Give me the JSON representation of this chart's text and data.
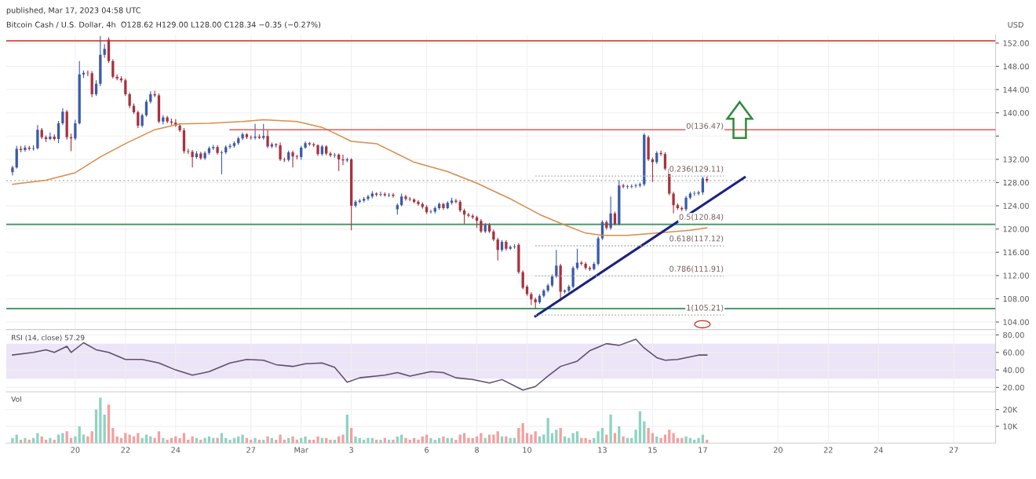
{
  "chart_data": [
    {
      "type": "candlestick",
      "subtitle": "published, Mar 17, 2023 04:58 UTC",
      "title": "Bitcoin Cash / U.S. Dollar, 4h  O128.62 H129.00 L128.00 C128.34 −0.35 (−0.27%)",
      "ylabel": "USD",
      "x": [
        "2023-02-17T12:00",
        "2023-02-17T16:00",
        "2023-02-17T20:00",
        "2023-02-18T00:00",
        "2023-02-18T04:00",
        "2023-02-18T08:00",
        "2023-02-18T12:00",
        "2023-02-18T16:00",
        "2023-02-18T20:00",
        "2023-02-19T00:00",
        "2023-02-19T04:00",
        "2023-02-19T08:00",
        "2023-02-19T12:00",
        "2023-02-19T16:00",
        "2023-02-19T20:00",
        "2023-02-20T00:00",
        "2023-02-20T04:00",
        "2023-02-20T08:00",
        "2023-02-20T12:00",
        "2023-02-20T16:00",
        "2023-02-20T20:00",
        "2023-02-21T00:00",
        "2023-02-21T04:00",
        "2023-02-21T08:00",
        "2023-02-21T12:00",
        "2023-02-21T16:00",
        "2023-02-21T20:00",
        "2023-02-22T00:00",
        "2023-02-22T04:00",
        "2023-02-22T08:00",
        "2023-02-22T12:00",
        "2023-02-22T16:00",
        "2023-02-22T20:00",
        "2023-02-23T00:00",
        "2023-02-23T04:00",
        "2023-02-23T08:00",
        "2023-02-23T12:00",
        "2023-02-23T16:00",
        "2023-02-23T20:00",
        "2023-02-24T00:00",
        "2023-02-24T04:00",
        "2023-02-24T08:00",
        "2023-02-24T12:00",
        "2023-02-24T16:00",
        "2023-02-24T20:00",
        "2023-02-25T00:00",
        "2023-02-25T04:00",
        "2023-02-25T08:00",
        "2023-02-25T12:00",
        "2023-02-25T16:00",
        "2023-02-25T20:00",
        "2023-02-26T00:00",
        "2023-02-26T04:00",
        "2023-02-26T08:00",
        "2023-02-26T12:00",
        "2023-02-26T16:00",
        "2023-02-26T20:00",
        "2023-02-27T00:00",
        "2023-02-27T04:00",
        "2023-02-27T08:00",
        "2023-02-27T12:00",
        "2023-02-27T16:00",
        "2023-02-27T20:00",
        "2023-02-28T00:00",
        "2023-02-28T04:00",
        "2023-02-28T08:00",
        "2023-02-28T12:00",
        "2023-02-28T16:00",
        "2023-02-28T20:00",
        "2023-03-01T00:00",
        "2023-03-01T04:00",
        "2023-03-01T08:00",
        "2023-03-01T12:00",
        "2023-03-01T16:00",
        "2023-03-01T20:00",
        "2023-03-02T00:00",
        "2023-03-02T04:00",
        "2023-03-02T08:00",
        "2023-03-02T12:00",
        "2023-03-02T16:00",
        "2023-03-02T20:00",
        "2023-03-03T00:00",
        "2023-03-03T04:00",
        "2023-03-03T08:00",
        "2023-03-03T12:00",
        "2023-03-03T16:00",
        "2023-03-03T20:00",
        "2023-03-04T00:00",
        "2023-03-04T04:00",
        "2023-03-04T08:00",
        "2023-03-04T12:00",
        "2023-03-04T16:00",
        "2023-03-04T20:00",
        "2023-03-05T00:00",
        "2023-03-05T04:00",
        "2023-03-05T08:00",
        "2023-03-05T12:00",
        "2023-03-05T16:00",
        "2023-03-05T20:00",
        "2023-03-06T00:00",
        "2023-03-06T04:00",
        "2023-03-06T08:00",
        "2023-03-06T12:00",
        "2023-03-06T16:00",
        "2023-03-06T20:00",
        "2023-03-07T00:00",
        "2023-03-07T04:00",
        "2023-03-07T08:00",
        "2023-03-07T12:00",
        "2023-03-07T16:00",
        "2023-03-07T20:00",
        "2023-03-08T00:00",
        "2023-03-08T04:00",
        "2023-03-08T08:00",
        "2023-03-08T12:00",
        "2023-03-08T16:00",
        "2023-03-08T20:00",
        "2023-03-09T00:00",
        "2023-03-09T04:00",
        "2023-03-09T08:00",
        "2023-03-09T12:00",
        "2023-03-09T16:00",
        "2023-03-09T20:00",
        "2023-03-10T00:00",
        "2023-03-10T04:00",
        "2023-03-10T08:00",
        "2023-03-10T12:00",
        "2023-03-10T16:00",
        "2023-03-10T20:00",
        "2023-03-11T00:00",
        "2023-03-11T04:00",
        "2023-03-11T08:00",
        "2023-03-11T12:00",
        "2023-03-11T16:00",
        "2023-03-11T20:00",
        "2023-03-12T00:00",
        "2023-03-12T04:00",
        "2023-03-12T08:00",
        "2023-03-12T12:00",
        "2023-03-12T16:00",
        "2023-03-12T20:00",
        "2023-03-13T00:00",
        "2023-03-13T04:00",
        "2023-03-13T08:00",
        "2023-03-13T12:00",
        "2023-03-13T16:00",
        "2023-03-13T20:00",
        "2023-03-14T00:00",
        "2023-03-14T04:00",
        "2023-03-14T08:00",
        "2023-03-14T12:00",
        "2023-03-14T16:00",
        "2023-03-14T20:00",
        "2023-03-15T00:00",
        "2023-03-15T04:00",
        "2023-03-15T08:00",
        "2023-03-15T12:00",
        "2023-03-15T16:00",
        "2023-03-15T20:00",
        "2023-03-16T00:00",
        "2023-03-16T04:00",
        "2023-03-16T08:00",
        "2023-03-16T12:00",
        "2023-03-16T16:00",
        "2023-03-16T20:00",
        "2023-03-17T00:00",
        "2023-03-17T04:00"
      ],
      "ohlc": [
        [
          129.8,
          130.9,
          129.2,
          130.6
        ],
        [
          130.6,
          134.3,
          130.4,
          133.8
        ],
        [
          133.8,
          134.3,
          133.2,
          133.6
        ],
        [
          133.6,
          134.4,
          133.3,
          134.0
        ],
        [
          134.0,
          134.3,
          133.5,
          133.8
        ],
        [
          133.8,
          134.4,
          133.5,
          133.9
        ],
        [
          133.9,
          137.9,
          133.7,
          137.1
        ],
        [
          137.1,
          137.4,
          135.5,
          135.8
        ],
        [
          135.8,
          136.1,
          135.0,
          135.5
        ],
        [
          135.5,
          136.6,
          135.3,
          135.9
        ],
        [
          135.9,
          136.3,
          135.2,
          135.5
        ],
        [
          135.5,
          138.6,
          134.8,
          138.2
        ],
        [
          138.2,
          140.8,
          137.9,
          140.2
        ],
        [
          140.2,
          140.5,
          135.4,
          135.8
        ],
        [
          135.8,
          136.4,
          133.4,
          135.6
        ],
        [
          135.6,
          138.8,
          135.3,
          138.2
        ],
        [
          138.2,
          148.9,
          138.0,
          146.6
        ],
        [
          146.6,
          147.3,
          146.0,
          146.9
        ],
        [
          146.9,
          147.3,
          146.3,
          146.8
        ],
        [
          146.8,
          147.2,
          142.7,
          143.2
        ],
        [
          143.2,
          145.6,
          142.9,
          145.0
        ],
        [
          145.0,
          153.2,
          144.6,
          150.0
        ],
        [
          150.0,
          151.8,
          149.5,
          151.0
        ],
        [
          152.6,
          153.0,
          148.6,
          148.9
        ],
        [
          148.9,
          149.2,
          145.9,
          146.2
        ],
        [
          146.2,
          146.6,
          145.6,
          145.9
        ],
        [
          145.9,
          146.3,
          145.2,
          145.6
        ],
        [
          145.6,
          145.9,
          142.9,
          143.2
        ],
        [
          143.2,
          143.5,
          140.8,
          141.2
        ],
        [
          141.2,
          141.6,
          139.8,
          140.1
        ],
        [
          140.1,
          140.4,
          137.4,
          137.8
        ],
        [
          137.8,
          139.9,
          137.5,
          139.6
        ],
        [
          139.6,
          142.3,
          139.3,
          141.9
        ],
        [
          141.9,
          143.7,
          141.6,
          143.2
        ],
        [
          143.2,
          143.8,
          142.7,
          143.0
        ],
        [
          143.0,
          143.3,
          138.2,
          138.5
        ],
        [
          138.5,
          139.6,
          138.0,
          139.2
        ],
        [
          139.2,
          139.5,
          138.2,
          138.5
        ],
        [
          138.5,
          139.0,
          137.9,
          138.3
        ],
        [
          138.3,
          138.9,
          137.6,
          137.8
        ],
        [
          137.8,
          138.2,
          136.7,
          137.0
        ],
        [
          137.0,
          137.4,
          133.0,
          133.4
        ],
        [
          133.4,
          133.8,
          132.9,
          133.3
        ],
        [
          133.3,
          133.6,
          130.6,
          132.4
        ],
        [
          132.4,
          133.4,
          132.1,
          133.0
        ],
        [
          133.0,
          133.3,
          131.9,
          132.2
        ],
        [
          132.2,
          133.4,
          131.9,
          133.1
        ],
        [
          133.1,
          134.2,
          132.8,
          133.9
        ],
        [
          133.9,
          134.5,
          133.6,
          134.1
        ],
        [
          134.1,
          134.4,
          132.8,
          133.1
        ],
        [
          133.1,
          133.5,
          129.4,
          133.2
        ],
        [
          133.2,
          134.4,
          132.9,
          134.1
        ],
        [
          134.1,
          134.7,
          133.8,
          134.3
        ],
        [
          134.3,
          135.1,
          134.0,
          134.8
        ],
        [
          134.8,
          135.9,
          134.5,
          135.6
        ],
        [
          135.6,
          136.6,
          135.3,
          136.3
        ],
        [
          136.3,
          136.5,
          135.5,
          135.8
        ],
        [
          135.8,
          136.1,
          135.4,
          135.7
        ],
        [
          135.7,
          138.1,
          135.4,
          135.9
        ],
        [
          135.9,
          136.3,
          135.5,
          135.7
        ],
        [
          135.7,
          138.1,
          135.4,
          136.0
        ],
        [
          136.0,
          137.0,
          133.9,
          134.2
        ],
        [
          134.2,
          134.9,
          133.9,
          134.6
        ],
        [
          134.6,
          134.8,
          134.0,
          134.4
        ],
        [
          134.4,
          134.9,
          131.7,
          132.0
        ],
        [
          132.0,
          132.3,
          131.5,
          131.9
        ],
        [
          131.9,
          133.5,
          131.6,
          133.2
        ],
        [
          133.2,
          133.5,
          130.6,
          132.5
        ],
        [
          132.5,
          132.8,
          132.0,
          132.4
        ],
        [
          132.4,
          134.3,
          131.9,
          134.0
        ],
        [
          134.0,
          135.1,
          133.8,
          134.8
        ],
        [
          134.8,
          135.0,
          134.3,
          134.6
        ],
        [
          134.6,
          134.9,
          134.1,
          134.4
        ],
        [
          134.4,
          134.6,
          132.6,
          132.9
        ],
        [
          132.9,
          134.5,
          132.6,
          134.2
        ],
        [
          134.2,
          134.4,
          132.7,
          133.0
        ],
        [
          133.0,
          133.3,
          132.4,
          132.7
        ],
        [
          132.7,
          133.1,
          132.3,
          132.8
        ],
        [
          132.8,
          133.0,
          130.0,
          132.0
        ],
        [
          132.0,
          132.8,
          131.0,
          131.8
        ],
        [
          131.8,
          132.3,
          131.5,
          132.0
        ],
        [
          132.0,
          132.2,
          119.8,
          124.0
        ],
        [
          124.0,
          125.0,
          123.7,
          124.7
        ],
        [
          124.7,
          125.2,
          124.4,
          124.9
        ],
        [
          124.9,
          125.5,
          124.6,
          125.2
        ],
        [
          125.2,
          125.9,
          124.9,
          125.6
        ],
        [
          125.6,
          126.5,
          125.3,
          126.1
        ],
        [
          126.1,
          126.3,
          125.6,
          125.9
        ],
        [
          125.9,
          126.4,
          125.6,
          126.0
        ],
        [
          126.0,
          126.3,
          125.6,
          125.8
        ],
        [
          125.8,
          126.2,
          125.5,
          125.9
        ],
        [
          125.9,
          126.2,
          125.4,
          125.7
        ],
        [
          123.4,
          124.4,
          122.5,
          124.1
        ],
        [
          124.1,
          126.1,
          123.9,
          125.6
        ],
        [
          125.6,
          125.9,
          124.9,
          125.2
        ],
        [
          125.2,
          125.5,
          124.8,
          125.1
        ],
        [
          125.1,
          125.3,
          124.4,
          124.7
        ],
        [
          124.7,
          125.0,
          124.0,
          124.3
        ],
        [
          124.3,
          124.6,
          123.5,
          123.8
        ],
        [
          123.8,
          124.1,
          122.6,
          122.9
        ],
        [
          122.9,
          123.3,
          122.7,
          123.0
        ],
        [
          123.0,
          123.9,
          122.7,
          123.6
        ],
        [
          123.6,
          124.6,
          123.3,
          124.3
        ],
        [
          124.3,
          124.5,
          123.3,
          123.6
        ],
        [
          123.6,
          124.8,
          123.4,
          124.5
        ],
        [
          124.5,
          125.4,
          124.2,
          124.9
        ],
        [
          124.9,
          125.2,
          124.4,
          124.7
        ],
        [
          124.7,
          125.0,
          122.9,
          123.2
        ],
        [
          123.2,
          123.5,
          120.9,
          122.5
        ],
        [
          122.5,
          122.8,
          122.0,
          122.3
        ],
        [
          122.3,
          122.6,
          121.7,
          122.0
        ],
        [
          122.0,
          122.3,
          120.2,
          121.4
        ],
        [
          121.4,
          121.7,
          119.3,
          119.6
        ],
        [
          119.6,
          121.0,
          119.3,
          120.7
        ],
        [
          120.7,
          121.0,
          119.3,
          119.6
        ],
        [
          119.6,
          119.9,
          117.9,
          118.2
        ],
        [
          118.2,
          118.5,
          114.6,
          116.4
        ],
        [
          116.4,
          118.1,
          116.1,
          117.8
        ],
        [
          117.8,
          118.1,
          116.3,
          116.6
        ],
        [
          116.6,
          117.2,
          116.4,
          116.9
        ],
        [
          116.9,
          117.4,
          116.6,
          117.0
        ],
        [
          117.3,
          117.6,
          112.3,
          112.6
        ],
        [
          112.6,
          112.9,
          109.6,
          109.9
        ],
        [
          110.1,
          110.4,
          108.5,
          108.8
        ],
        [
          108.8,
          109.1,
          106.9,
          107.9
        ],
        [
          107.9,
          108.2,
          106.3,
          107.4
        ],
        [
          107.4,
          108.8,
          107.1,
          108.5
        ],
        [
          108.5,
          109.7,
          108.2,
          109.4
        ],
        [
          109.4,
          110.6,
          109.1,
          110.3
        ],
        [
          110.3,
          112.2,
          110.0,
          111.9
        ],
        [
          111.9,
          116.4,
          111.6,
          113.7
        ],
        [
          113.7,
          114.0,
          107.6,
          109.2
        ],
        [
          109.2,
          109.6,
          108.9,
          109.4
        ],
        [
          109.4,
          110.4,
          109.1,
          110.1
        ],
        [
          110.1,
          113.6,
          109.8,
          113.3
        ],
        [
          113.3,
          116.6,
          113.0,
          114.2
        ],
        [
          114.2,
          114.5,
          113.7,
          114.0
        ],
        [
          114.0,
          114.3,
          113.0,
          113.3
        ],
        [
          113.3,
          113.6,
          112.8,
          113.1
        ],
        [
          113.1,
          114.3,
          112.9,
          114.0
        ],
        [
          114.0,
          118.7,
          113.7,
          118.4
        ],
        [
          118.4,
          121.5,
          118.1,
          121.2
        ],
        [
          121.2,
          121.5,
          119.9,
          120.2
        ],
        [
          120.2,
          125.6,
          119.9,
          122.7
        ],
        [
          122.7,
          123.0,
          120.6,
          120.9
        ],
        [
          120.9,
          128.4,
          120.6,
          127.5
        ],
        [
          127.5,
          127.8,
          127.0,
          127.3
        ],
        [
          127.3,
          127.6,
          126.9,
          127.3
        ],
        [
          127.3,
          127.7,
          127.0,
          127.4
        ],
        [
          127.4,
          127.8,
          127.1,
          127.5
        ],
        [
          127.5,
          128.0,
          127.2,
          127.7
        ],
        [
          127.7,
          136.5,
          127.4,
          136.2
        ],
        [
          135.8,
          136.1,
          131.7,
          132.0
        ],
        [
          132.0,
          132.3,
          128.1,
          131.5
        ],
        [
          131.5,
          133.4,
          131.2,
          133.1
        ],
        [
          133.1,
          133.5,
          132.6,
          132.9
        ],
        [
          132.9,
          133.2,
          130.1,
          130.4
        ],
        [
          130.4,
          130.7,
          125.8,
          126.1
        ],
        [
          126.1,
          126.4,
          122.7,
          124.1
        ],
        [
          124.1,
          124.4,
          123.3,
          123.6
        ],
        [
          123.6,
          123.9,
          123.1,
          123.4
        ],
        [
          123.4,
          125.7,
          123.1,
          125.4
        ],
        [
          125.4,
          126.4,
          125.1,
          126.1
        ],
        [
          126.1,
          126.5,
          125.7,
          126.1
        ],
        [
          126.1,
          126.6,
          125.8,
          126.3
        ],
        [
          126.3,
          129.0,
          125.9,
          128.69
        ],
        [
          128.62,
          129.0,
          128.0,
          128.34
        ]
      ],
      "series": [
        {
          "type": "line",
          "color": "#d98c4a",
          "line_style": "solid",
          "x": [
            "2023-02-17T12:00",
            "2023-02-18T20:00",
            "2023-02-20T00:00",
            "2023-02-21T00:00",
            "2023-02-22T00:00",
            "2023-02-23T04:00",
            "2023-02-24T04:00",
            "2023-02-25T08:00",
            "2023-02-26T16:00",
            "2023-02-27T12:00",
            "2023-02-28T20:00",
            "2023-03-01T20:00",
            "2023-03-02T08:00",
            "2023-03-03T00:00",
            "2023-03-04T00:00",
            "2023-03-05T12:00",
            "2023-03-06T20:00",
            "2023-03-08T00:00",
            "2023-03-09T08:00",
            "2023-03-10T12:00",
            "2023-03-11T12:00",
            "2023-03-12T08:00",
            "2023-03-13T00:00",
            "2023-03-14T00:00",
            "2023-03-15T04:00",
            "2023-03-16T12:00",
            "2023-03-17T04:00"
          ],
          "values": [
            127.7,
            128.4,
            129.7,
            132.4,
            134.7,
            137.1,
            138.1,
            138.2,
            138.5,
            138.8,
            138.5,
            137.5,
            136.5,
            135.1,
            134.7,
            131.5,
            129.9,
            127.9,
            125.2,
            122.5,
            120.7,
            119.3,
            118.9,
            118.9,
            119.3,
            119.8,
            120.2
          ]
        },
        {
          "type": "line",
          "color": "#e05a5a",
          "line_style": "solid",
          "x": [
            "2023-02-26T04:00",
            "2023-03-28T16:00"
          ],
          "values": [
            137.1,
            137.1
          ]
        },
        {
          "type": "line",
          "color": "#1a237e",
          "line_style": "solid",
          "x": [
            "2023-03-10T08:00",
            "2023-03-18T16:00"
          ],
          "values": [
            105.0,
            128.9
          ]
        },
        {
          "type": "line",
          "color": "#b0b0b0",
          "line_style": "dotted",
          "x": [
            "2023-03-10T08:00",
            "2023-03-17T20:00"
          ],
          "values": [
            129.1,
            129.1
          ]
        },
        {
          "type": "line",
          "color": "#b0b0b0",
          "line_style": "dotted",
          "x": [
            "2023-03-10T08:00",
            "2023-03-17T20:00"
          ],
          "values": [
            117.1,
            117.1
          ]
        },
        {
          "type": "line",
          "color": "#b0b0b0",
          "line_style": "dotted",
          "x": [
            "2023-03-10T08:00",
            "2023-03-17T20:00"
          ],
          "values": [
            111.9,
            111.9
          ]
        },
        {
          "type": "line",
          "color": "#b0b0b0",
          "line_style": "dotted",
          "x": [
            "2023-03-10T08:00",
            "2023-03-17T20:00"
          ],
          "values": [
            105.2,
            105.2
          ]
        }
      ],
      "ref_lines": [
        {
          "axis": "y",
          "value": 152.4,
          "color": "#e05a5a",
          "line_style": "solid"
        },
        {
          "axis": "y",
          "value": 120.8,
          "color": "#4c9a6a",
          "line_style": "solid"
        },
        {
          "axis": "y",
          "value": 106.3,
          "color": "#4c9a6a",
          "line_style": "solid"
        },
        {
          "axis": "y",
          "value": 128.34,
          "color": "#c8c8c8",
          "line_style": "dotted"
        }
      ],
      "annotations": [
        {
          "text": "0(136.47)",
          "x": "2023-03-17T20:00",
          "y": 136.5
        },
        {
          "text": "0.236(129.11)",
          "x": "2023-03-17T20:00",
          "y": 129.11
        },
        {
          "text": "0.5(120.84)",
          "x": "2023-03-17T20:00",
          "y": 120.84
        },
        {
          "text": "0.618(117.12)",
          "x": "2023-03-17T20:00",
          "y": 117.12
        },
        {
          "text": "0.786(111.91)",
          "x": "2023-03-17T20:00",
          "y": 111.91
        },
        {
          "text": "1(105.21)",
          "x": "2023-03-17T20:00",
          "y": 105.21
        }
      ],
      "xlim": [
        "2023-02-17T06:00",
        "2023-03-28T16:00"
      ],
      "xticks": [
        {
          "value": "2023-02-20",
          "label": null
        },
        {
          "value": "2023-02-22",
          "label": null
        },
        {
          "value": "2023-02-24",
          "label": null
        },
        {
          "value": "2023-02-27",
          "label": null
        },
        {
          "value": "2023-03-01",
          "label": null
        },
        {
          "value": "2023-03-03",
          "label": null
        },
        {
          "value": "2023-03-06",
          "label": null
        },
        {
          "value": "2023-03-08",
          "label": null
        },
        {
          "value": "2023-03-10",
          "label": null
        },
        {
          "value": "2023-03-13",
          "label": null
        },
        {
          "value": "2023-03-15",
          "label": null
        },
        {
          "value": "2023-03-17",
          "label": null
        },
        {
          "value": "2023-03-20",
          "label": null
        },
        {
          "value": "2023-03-22",
          "label": null
        },
        {
          "value": "2023-03-24",
          "label": null
        },
        {
          "value": "2023-03-27",
          "label": null
        }
      ],
      "ylim": [
        102.7,
        153.4
      ],
      "yticks": [
        {
          "value": 104,
          "label": "104.00"
        },
        {
          "value": 108,
          "label": "108.00"
        },
        {
          "value": 112,
          "label": "112.00"
        },
        {
          "value": 116,
          "label": "116.00"
        },
        {
          "value": 120,
          "label": "120.00"
        },
        {
          "value": 124,
          "label": "124.00"
        },
        {
          "value": 128,
          "label": "128.00"
        },
        {
          "value": 132,
          "label": "132.00"
        },
        {
          "value": 136,
          "label": null
        },
        {
          "value": 140,
          "label": "140.00"
        },
        {
          "value": 144,
          "label": "144.00"
        },
        {
          "value": 148,
          "label": "148.00"
        },
        {
          "value": 152,
          "label": "152.00"
        }
      ],
      "grid": true,
      "tick_labels": "y"
    },
    {
      "type": "line",
      "title": "RSI (14, close) 57.29",
      "series": [
        {
          "color": "#5d4e6d",
          "x": [
            "2023-02-17T12:00",
            "2023-02-18T08:00",
            "2023-02-18T20:00",
            "2023-02-19T04:00",
            "2023-02-19T16:00",
            "2023-02-19T20:00",
            "2023-02-20T08:00",
            "2023-02-20T20:00",
            "2023-02-21T08:00",
            "2023-02-22T00:00",
            "2023-02-22T16:00",
            "2023-02-23T08:00",
            "2023-02-24T00:00",
            "2023-02-24T16:00",
            "2023-02-25T08:00",
            "2023-02-26T04:00",
            "2023-02-26T20:00",
            "2023-02-27T12:00",
            "2023-02-28T00:00",
            "2023-02-28T16:00",
            "2023-03-01T04:00",
            "2023-03-01T20:00",
            "2023-03-02T08:00",
            "2023-03-02T20:00",
            "2023-03-03T08:00",
            "2023-03-04T08:00",
            "2023-03-04T20:00",
            "2023-03-05T08:00",
            "2023-03-06T04:00",
            "2023-03-06T16:00",
            "2023-03-07T04:00",
            "2023-03-07T20:00",
            "2023-03-08T12:00",
            "2023-03-09T00:00",
            "2023-03-09T20:00",
            "2023-03-10T08:00",
            "2023-03-10T20:00",
            "2023-03-11T08:00",
            "2023-03-12T00:00",
            "2023-03-12T12:00",
            "2023-03-13T04:00",
            "2023-03-13T16:00",
            "2023-03-14T08:00",
            "2023-03-14T16:00",
            "2023-03-15T04:00",
            "2023-03-15T12:00",
            "2023-03-16T00:00",
            "2023-03-16T20:00",
            "2023-03-17T04:00"
          ],
          "values": [
            57,
            60,
            63,
            60,
            67,
            60,
            71,
            63,
            60,
            52,
            52,
            48,
            40,
            34,
            38,
            48,
            52,
            51,
            46,
            44,
            47,
            48,
            43,
            26,
            31,
            34,
            37,
            33,
            38,
            37,
            31,
            29,
            25,
            29,
            17,
            21,
            33,
            44,
            50,
            62,
            70,
            68,
            75,
            65,
            54,
            51,
            52,
            57,
            57
          ]
        }
      ],
      "bands": [
        {
          "axis": "y",
          "from": 30,
          "to": 70,
          "color": "#ece4f7"
        }
      ],
      "xlim": [
        "2023-02-17T06:00",
        "2023-03-28T16:00"
      ],
      "xticks": [
        {
          "value": "2023-02-20",
          "label": null
        },
        {
          "value": "2023-02-22",
          "label": null
        },
        {
          "value": "2023-02-24",
          "label": null
        },
        {
          "value": "2023-02-27",
          "label": null
        },
        {
          "value": "2023-03-01",
          "label": null
        },
        {
          "value": "2023-03-03",
          "label": null
        },
        {
          "value": "2023-03-06",
          "label": null
        },
        {
          "value": "2023-03-08",
          "label": null
        },
        {
          "value": "2023-03-10",
          "label": null
        },
        {
          "value": "2023-03-13",
          "label": null
        },
        {
          "value": "2023-03-15",
          "label": null
        },
        {
          "value": "2023-03-17",
          "label": null
        },
        {
          "value": "2023-03-20",
          "label": null
        },
        {
          "value": "2023-03-22",
          "label": null
        },
        {
          "value": "2023-03-24",
          "label": null
        },
        {
          "value": "2023-03-27",
          "label": null
        }
      ],
      "ylim": [
        15,
        85
      ],
      "yticks": [
        {
          "value": 20,
          "label": "20.00"
        },
        {
          "value": 40,
          "label": "40.00"
        },
        {
          "value": 60,
          "label": "60.00"
        },
        {
          "value": 80,
          "label": "80.00"
        }
      ],
      "grid": true,
      "tick_labels": "y"
    },
    {
      "type": "bar",
      "title": "Vol",
      "x": [
        "2023-02-17T12:00",
        "2023-02-17T16:00",
        "2023-02-17T20:00",
        "2023-02-18T00:00",
        "2023-02-18T04:00",
        "2023-02-18T08:00",
        "2023-02-18T12:00",
        "2023-02-18T16:00",
        "2023-02-18T20:00",
        "2023-02-19T00:00",
        "2023-02-19T04:00",
        "2023-02-19T08:00",
        "2023-02-19T12:00",
        "2023-02-19T16:00",
        "2023-02-19T20:00",
        "2023-02-20T00:00",
        "2023-02-20T04:00",
        "2023-02-20T08:00",
        "2023-02-20T12:00",
        "2023-02-20T16:00",
        "2023-02-20T20:00",
        "2023-02-21T00:00",
        "2023-02-21T04:00",
        "2023-02-21T08:00",
        "2023-02-21T12:00",
        "2023-02-21T16:00",
        "2023-02-21T20:00",
        "2023-02-22T00:00",
        "2023-02-22T04:00",
        "2023-02-22T08:00",
        "2023-02-22T12:00",
        "2023-02-22T16:00",
        "2023-02-22T20:00",
        "2023-02-23T00:00",
        "2023-02-23T04:00",
        "2023-02-23T08:00",
        "2023-02-23T12:00",
        "2023-02-23T16:00",
        "2023-02-23T20:00",
        "2023-02-24T00:00",
        "2023-02-24T04:00",
        "2023-02-24T08:00",
        "2023-02-24T12:00",
        "2023-02-24T16:00",
        "2023-02-24T20:00",
        "2023-02-25T00:00",
        "2023-02-25T04:00",
        "2023-02-25T08:00",
        "2023-02-25T12:00",
        "2023-02-25T16:00",
        "2023-02-25T20:00",
        "2023-02-26T00:00",
        "2023-02-26T04:00",
        "2023-02-26T08:00",
        "2023-02-26T12:00",
        "2023-02-26T16:00",
        "2023-02-26T20:00",
        "2023-02-27T00:00",
        "2023-02-27T04:00",
        "2023-02-27T08:00",
        "2023-02-27T12:00",
        "2023-02-27T16:00",
        "2023-02-27T20:00",
        "2023-02-28T00:00",
        "2023-02-28T04:00",
        "2023-02-28T08:00",
        "2023-02-28T12:00",
        "2023-02-28T16:00",
        "2023-02-28T20:00",
        "2023-03-01T00:00",
        "2023-03-01T04:00",
        "2023-03-01T08:00",
        "2023-03-01T12:00",
        "2023-03-01T16:00",
        "2023-03-01T20:00",
        "2023-03-02T00:00",
        "2023-03-02T04:00",
        "2023-03-02T08:00",
        "2023-03-02T12:00",
        "2023-03-02T16:00",
        "2023-03-02T20:00",
        "2023-03-03T00:00",
        "2023-03-03T04:00",
        "2023-03-03T08:00",
        "2023-03-03T12:00",
        "2023-03-03T16:00",
        "2023-03-03T20:00",
        "2023-03-04T00:00",
        "2023-03-04T04:00",
        "2023-03-04T08:00",
        "2023-03-04T12:00",
        "2023-03-04T16:00",
        "2023-03-04T20:00",
        "2023-03-05T00:00",
        "2023-03-05T04:00",
        "2023-03-05T08:00",
        "2023-03-05T12:00",
        "2023-03-05T16:00",
        "2023-03-05T20:00",
        "2023-03-06T00:00",
        "2023-03-06T04:00",
        "2023-03-06T08:00",
        "2023-03-06T12:00",
        "2023-03-06T16:00",
        "2023-03-06T20:00",
        "2023-03-07T00:00",
        "2023-03-07T04:00",
        "2023-03-07T08:00",
        "2023-03-07T12:00",
        "2023-03-07T16:00",
        "2023-03-07T20:00",
        "2023-03-08T00:00",
        "2023-03-08T04:00",
        "2023-03-08T08:00",
        "2023-03-08T12:00",
        "2023-03-08T16:00",
        "2023-03-08T20:00",
        "2023-03-09T00:00",
        "2023-03-09T04:00",
        "2023-03-09T08:00",
        "2023-03-09T12:00",
        "2023-03-09T16:00",
        "2023-03-09T20:00",
        "2023-03-10T00:00",
        "2023-03-10T04:00",
        "2023-03-10T08:00",
        "2023-03-10T12:00",
        "2023-03-10T16:00",
        "2023-03-10T20:00",
        "2023-03-11T00:00",
        "2023-03-11T04:00",
        "2023-03-11T08:00",
        "2023-03-11T12:00",
        "2023-03-11T16:00",
        "2023-03-11T20:00",
        "2023-03-12T00:00",
        "2023-03-12T04:00",
        "2023-03-12T08:00",
        "2023-03-12T12:00",
        "2023-03-12T16:00",
        "2023-03-12T20:00",
        "2023-03-13T00:00",
        "2023-03-13T04:00",
        "2023-03-13T08:00",
        "2023-03-13T12:00",
        "2023-03-13T16:00",
        "2023-03-13T20:00",
        "2023-03-14T00:00",
        "2023-03-14T04:00",
        "2023-03-14T08:00",
        "2023-03-14T12:00",
        "2023-03-14T16:00",
        "2023-03-14T20:00",
        "2023-03-15T00:00",
        "2023-03-15T04:00",
        "2023-03-15T08:00",
        "2023-03-15T12:00",
        "2023-03-15T16:00",
        "2023-03-15T20:00",
        "2023-03-16T00:00",
        "2023-03-16T04:00",
        "2023-03-16T08:00",
        "2023-03-16T12:00",
        "2023-03-16T16:00",
        "2023-03-16T20:00",
        "2023-03-17T00:00",
        "2023-03-17T04:00"
      ],
      "values": [
        3,
        5,
        2,
        3,
        2,
        3,
        6,
        4,
        2,
        3,
        2,
        5,
        6,
        7,
        3,
        4,
        10,
        5,
        4,
        7,
        20,
        27,
        17,
        23,
        9,
        4,
        3,
        6,
        5,
        4,
        6,
        3,
        5,
        4,
        3,
        7,
        3,
        2,
        3,
        4,
        3,
        6,
        2,
        4,
        3,
        2,
        3,
        4,
        3,
        3,
        6,
        3,
        2,
        3,
        4,
        5,
        3,
        2,
        3,
        2,
        2,
        4,
        3,
        2,
        5,
        2,
        3,
        4,
        2,
        3,
        4,
        2,
        2,
        4,
        3,
        3,
        2,
        2,
        4,
        5,
        17,
        9,
        4,
        3,
        2,
        3,
        3,
        2,
        2,
        3,
        2,
        2,
        4,
        5,
        3,
        2,
        3,
        2,
        4,
        5,
        3,
        2,
        3,
        4,
        3,
        3,
        2,
        5,
        6,
        3,
        3,
        4,
        6,
        3,
        5,
        5,
        7,
        4,
        4,
        3,
        3,
        9,
        12,
        6,
        5,
        7,
        4,
        5,
        15,
        6,
        8,
        9,
        4,
        3,
        6,
        7,
        3,
        3,
        2,
        3,
        7,
        9,
        5,
        17,
        6,
        10,
        4,
        3,
        3,
        8,
        19,
        13,
        9,
        6,
        4,
        3,
        5,
        8,
        6,
        3,
        3,
        4,
        3,
        2,
        3,
        5,
        2
      ],
      "xlim": [
        "2023-02-17T06:00",
        "2023-03-28T16:00"
      ],
      "xticks": [
        {
          "value": "2023-02-20",
          "label": "20"
        },
        {
          "value": "2023-02-22",
          "label": "22"
        },
        {
          "value": "2023-02-24",
          "label": "24"
        },
        {
          "value": "2023-02-27",
          "label": "27"
        },
        {
          "value": "2023-03-01",
          "label": "Mar"
        },
        {
          "value": "2023-03-03",
          "label": "3"
        },
        {
          "value": "2023-03-06",
          "label": "6"
        },
        {
          "value": "2023-03-08",
          "label": "8"
        },
        {
          "value": "2023-03-10",
          "label": "10"
        },
        {
          "value": "2023-03-13",
          "label": "13"
        },
        {
          "value": "2023-03-15",
          "label": "15"
        },
        {
          "value": "2023-03-17",
          "label": "17"
        },
        {
          "value": "2023-03-20",
          "label": "20"
        },
        {
          "value": "2023-03-22",
          "label": "22"
        },
        {
          "value": "2023-03-24",
          "label": "24"
        },
        {
          "value": "2023-03-27",
          "label": "27"
        }
      ],
      "ylim": [
        0,
        30
      ],
      "yticks": [
        {
          "value": 10,
          "label": "10K"
        },
        {
          "value": 20,
          "label": "20K"
        }
      ],
      "grid": true
    }
  ]
}
